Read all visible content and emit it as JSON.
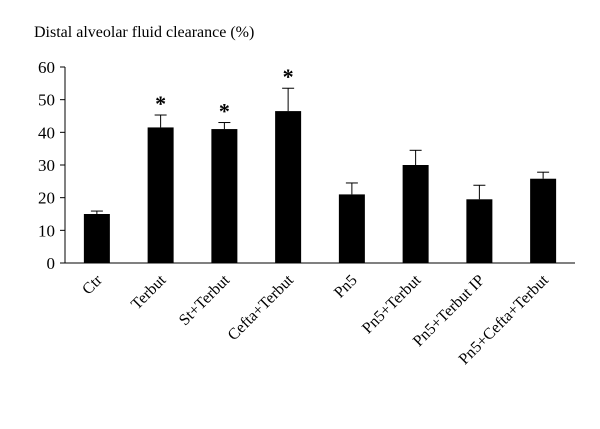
{
  "chart_data": {
    "type": "bar",
    "title": "",
    "xlabel": "",
    "ylabel": "Distal alveolar fluid clearance (%)",
    "ylim": [
      0,
      60
    ],
    "yticks": [
      0,
      10,
      20,
      30,
      40,
      50,
      60
    ],
    "categories": [
      "Ctr",
      "Terbut",
      "St+Terbut",
      "Cefta+Terbut",
      "Pn5",
      "Pn5+Terbut",
      "Pn5+Terbut IP",
      "Pn5+Cefta+Terbut"
    ],
    "values": [
      15,
      41.5,
      41,
      46.5,
      21,
      30,
      19.5,
      25.8
    ],
    "errors": [
      0.9,
      3.8,
      2.0,
      7.0,
      3.5,
      4.5,
      4.3,
      2.0
    ],
    "significance": [
      "",
      "*",
      "*",
      "*",
      "",
      "",
      "",
      ""
    ],
    "bar_color": "#000000",
    "grid": false
  }
}
